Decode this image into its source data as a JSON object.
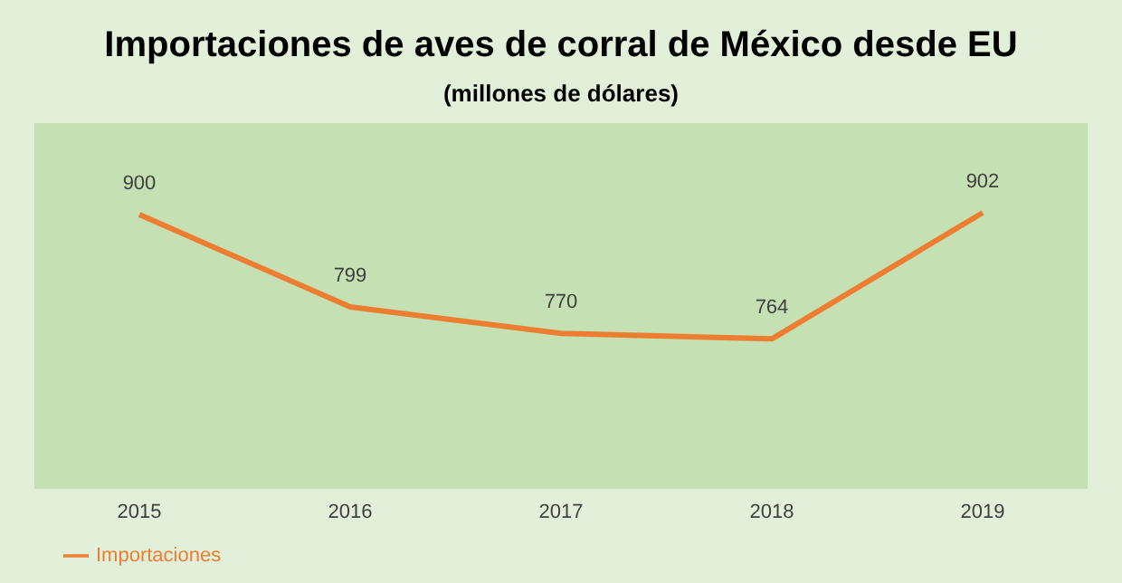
{
  "chart_data": {
    "type": "line",
    "title": "Importaciones de aves de corral de México desde EU",
    "subtitle": "(millones de dólares)",
    "categories": [
      "2015",
      "2016",
      "2017",
      "2018",
      "2019"
    ],
    "series": [
      {
        "name": "Importaciones",
        "color": "#ed7d31",
        "values": [
          900,
          799,
          770,
          764,
          902
        ]
      }
    ],
    "ylim": [
      600,
      1000
    ],
    "tick_labels": "x",
    "data_labels": true,
    "legend": "bottom left",
    "grid": false,
    "marker": "none"
  }
}
